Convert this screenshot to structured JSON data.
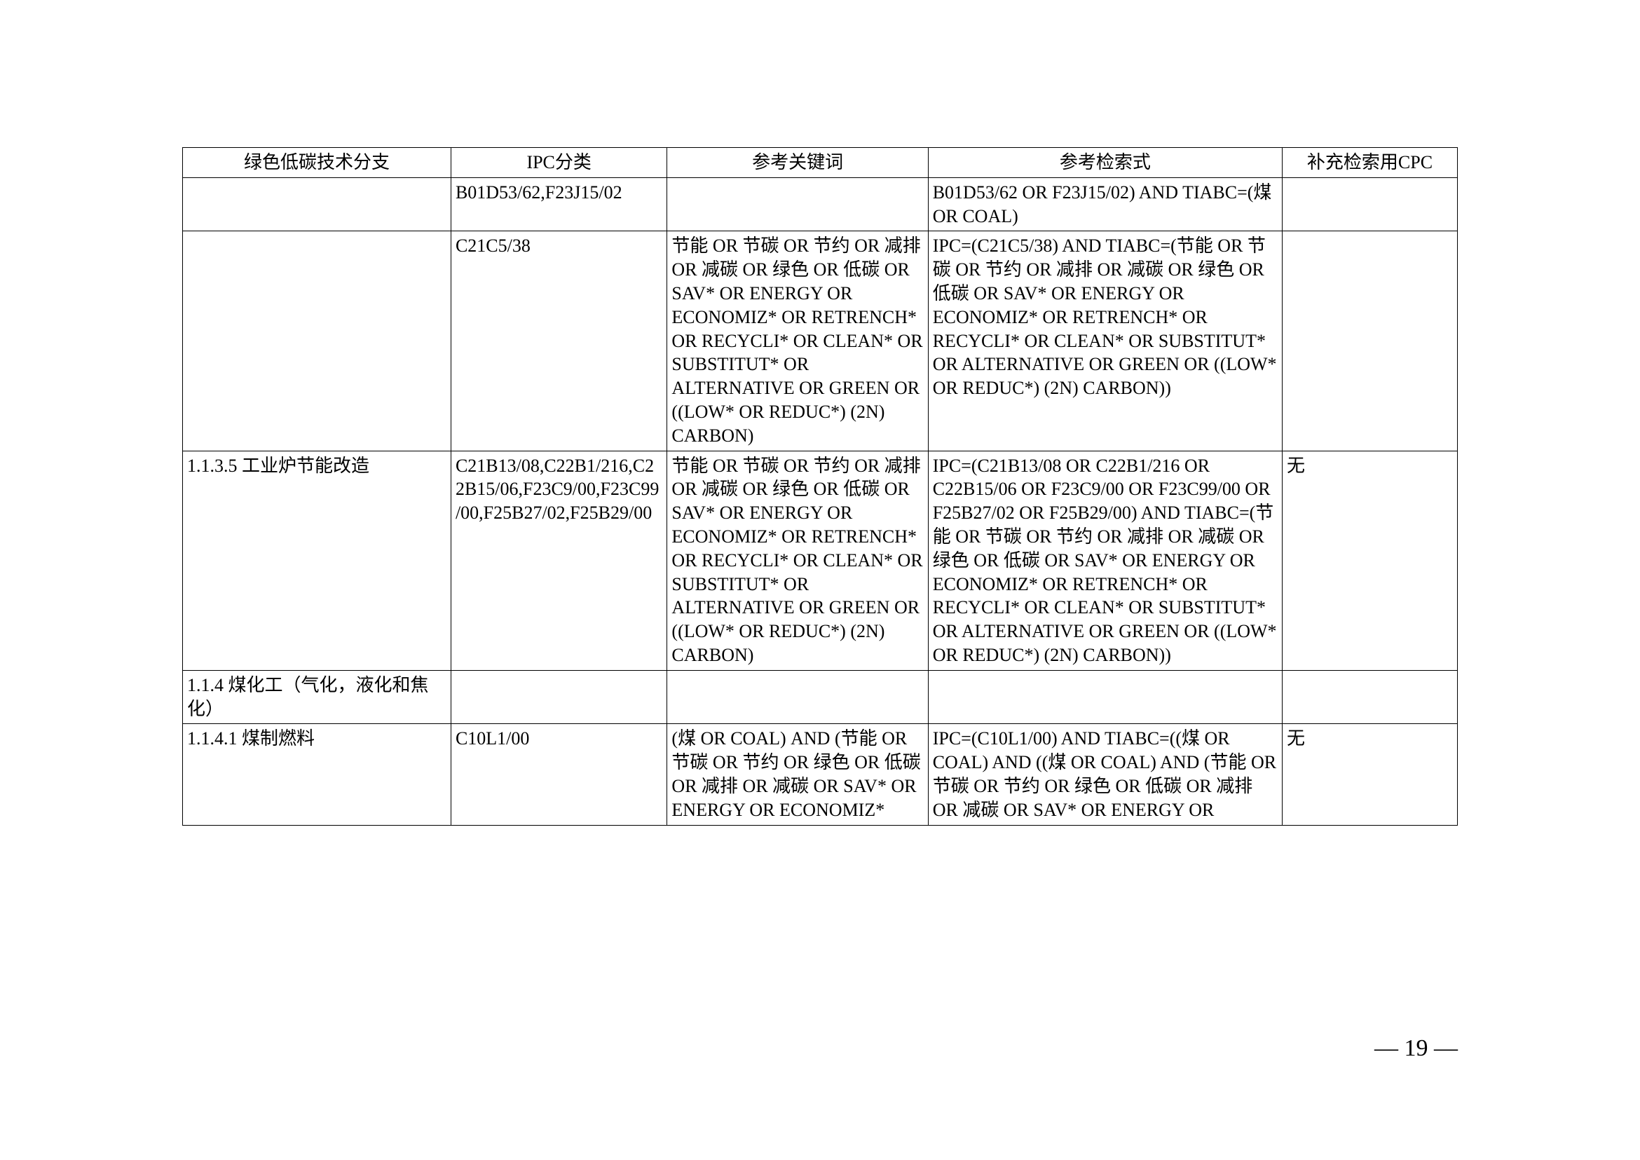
{
  "headers": {
    "col1": "绿色低碳技术分支",
    "col2": "IPC分类",
    "col3": "参考关键词",
    "col4": "参考检索式",
    "col5": "补充检索用CPC"
  },
  "rows": [
    {
      "c1": "",
      "c2": "B01D53/62,F23J15/02",
      "c3": "",
      "c4": "B01D53/62 OR F23J15/02) AND TIABC=(煤 OR COAL)",
      "c5": ""
    },
    {
      "c1": "",
      "c2": "C21C5/38",
      "c3": "节能 OR 节碳 OR 节约 OR 减排 OR 减碳 OR 绿色 OR 低碳 OR SAV* OR ENERGY OR ECONOMIZ* OR RETRENCH* OR RECYCLI* OR CLEAN* OR SUBSTITUT* OR ALTERNATIVE OR GREEN OR ((LOW* OR REDUC*) (2N) CARBON)",
      "c4": "IPC=(C21C5/38) AND TIABC=(节能 OR 节碳 OR 节约 OR 减排 OR 减碳 OR 绿色 OR 低碳 OR SAV* OR ENERGY OR ECONOMIZ* OR RETRENCH* OR RECYCLI* OR CLEAN* OR SUBSTITUT* OR ALTERNATIVE OR GREEN OR ((LOW* OR REDUC*) (2N) CARBON))",
      "c5": ""
    },
    {
      "c1": "1.1.3.5 工业炉节能改造",
      "c2": "C21B13/08,C22B1/216,C22B15/06,F23C9/00,F23C99/00,F25B27/02,F25B29/00",
      "c3": "节能 OR 节碳 OR 节约 OR 减排 OR 减碳 OR 绿色 OR 低碳 OR SAV* OR ENERGY OR ECONOMIZ* OR RETRENCH* OR RECYCLI* OR CLEAN* OR SUBSTITUT* OR ALTERNATIVE OR GREEN OR ((LOW* OR REDUC*) (2N) CARBON)",
      "c4": "IPC=(C21B13/08 OR C22B1/216 OR C22B15/06 OR F23C9/00 OR F23C99/00 OR F25B27/02 OR F25B29/00) AND TIABC=(节能 OR 节碳 OR 节约 OR 减排 OR 减碳 OR 绿色 OR 低碳 OR SAV* OR ENERGY OR ECONOMIZ* OR RETRENCH* OR RECYCLI* OR CLEAN* OR SUBSTITUT* OR ALTERNATIVE OR GREEN OR ((LOW* OR REDUC*) (2N) CARBON))",
      "c5": "无"
    },
    {
      "c1": "1.1.4 煤化工（气化，液化和焦化）",
      "c2": "",
      "c3": "",
      "c4": "",
      "c5": ""
    },
    {
      "c1": "1.1.4.1 煤制燃料",
      "c2": "C10L1/00",
      "c3": "(煤 OR COAL) AND (节能 OR 节碳 OR 节约 OR 绿色 OR 低碳 OR 减排 OR 减碳 OR SAV* OR ENERGY OR ECONOMIZ*",
      "c4": "IPC=(C10L1/00) AND TIABC=((煤 OR COAL) AND ((煤 OR COAL) AND (节能 OR 节碳 OR 节约 OR 绿色 OR 低碳 OR 减排 OR 减碳 OR SAV* OR ENERGY OR",
      "c5": "无"
    }
  ],
  "pageNumber": "— 19 —"
}
